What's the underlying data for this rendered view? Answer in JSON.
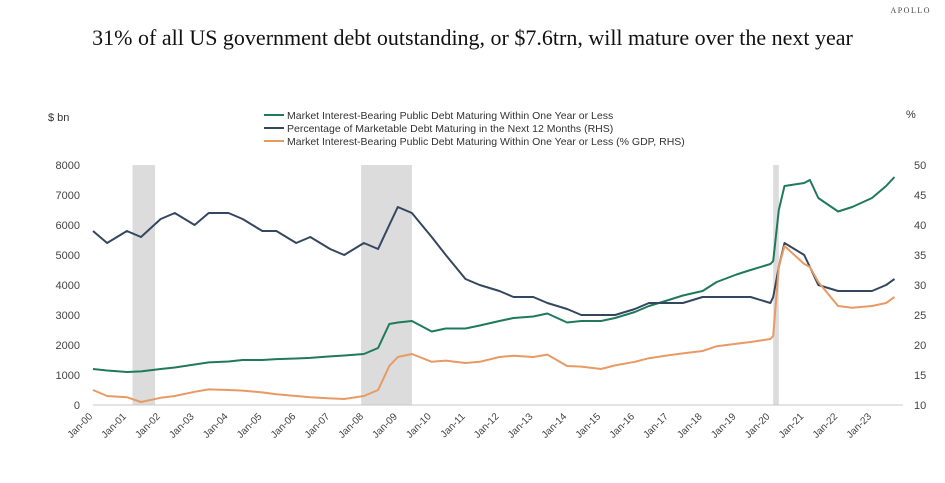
{
  "brand": "APOLLO",
  "chart_data": {
    "type": "line",
    "title": "31% of all US government debt outstanding, or $7.6trn, will mature over the next year",
    "y_left_label": "$ bn",
    "y_right_label": "%",
    "ylim_left": [
      0,
      8000
    ],
    "ylim_right": [
      10,
      50
    ],
    "y_left_ticks": [
      "0",
      "1000",
      "2000",
      "3000",
      "4000",
      "5000",
      "6000",
      "7000",
      "8000"
    ],
    "y_right_ticks": [
      "10",
      "15",
      "20",
      "25",
      "30",
      "35",
      "40",
      "45",
      "50"
    ],
    "x_range": [
      "2000-01",
      "2023-12"
    ],
    "x_ticks": [
      "Jan-00",
      "Jan-01",
      "Jan-02",
      "Jan-03",
      "Jan-04",
      "Jan-05",
      "Jan-06",
      "Jan-07",
      "Jan-08",
      "Jan-09",
      "Jan-10",
      "Jan-11",
      "Jan-12",
      "Jan-13",
      "Jan-14",
      "Jan-15",
      "Jan-16",
      "Jan-17",
      "Jan-18",
      "Jan-19",
      "Jan-20",
      "Jan-21",
      "Jan-22",
      "Jan-23"
    ],
    "recessions": [
      [
        "2001-03",
        "2001-11"
      ],
      [
        "2007-12",
        "2009-06"
      ],
      [
        "2020-02",
        "2020-04"
      ]
    ],
    "legend_position": "top-center",
    "series": [
      {
        "name": "Market Interest-Bearing Public Debt Maturing Within One Year or Less",
        "axis": "left",
        "color": "#1f7a5c",
        "points": [
          [
            "2000-01",
            1200
          ],
          [
            "2000-06",
            1150
          ],
          [
            "2001-01",
            1100
          ],
          [
            "2001-06",
            1120
          ],
          [
            "2002-01",
            1200
          ],
          [
            "2002-06",
            1250
          ],
          [
            "2003-01",
            1350
          ],
          [
            "2003-06",
            1420
          ],
          [
            "2004-01",
            1450
          ],
          [
            "2004-06",
            1500
          ],
          [
            "2005-01",
            1500
          ],
          [
            "2005-06",
            1530
          ],
          [
            "2006-01",
            1550
          ],
          [
            "2006-06",
            1570
          ],
          [
            "2007-01",
            1620
          ],
          [
            "2007-06",
            1650
          ],
          [
            "2008-01",
            1700
          ],
          [
            "2008-06",
            1900
          ],
          [
            "2008-10",
            2700
          ],
          [
            "2009-01",
            2750
          ],
          [
            "2009-06",
            2800
          ],
          [
            "2010-01",
            2450
          ],
          [
            "2010-06",
            2550
          ],
          [
            "2011-01",
            2550
          ],
          [
            "2011-06",
            2650
          ],
          [
            "2012-01",
            2800
          ],
          [
            "2012-06",
            2900
          ],
          [
            "2013-01",
            2950
          ],
          [
            "2013-06",
            3050
          ],
          [
            "2014-01",
            2750
          ],
          [
            "2014-06",
            2800
          ],
          [
            "2015-01",
            2800
          ],
          [
            "2015-06",
            2900
          ],
          [
            "2016-01",
            3100
          ],
          [
            "2016-06",
            3300
          ],
          [
            "2017-01",
            3500
          ],
          [
            "2017-06",
            3650
          ],
          [
            "2018-01",
            3800
          ],
          [
            "2018-06",
            4100
          ],
          [
            "2019-01",
            4350
          ],
          [
            "2019-06",
            4500
          ],
          [
            "2020-01",
            4700
          ],
          [
            "2020-02",
            4800
          ],
          [
            "2020-04",
            6500
          ],
          [
            "2020-06",
            7300
          ],
          [
            "2021-01",
            7400
          ],
          [
            "2021-03",
            7500
          ],
          [
            "2021-06",
            6900
          ],
          [
            "2022-01",
            6450
          ],
          [
            "2022-06",
            6600
          ],
          [
            "2023-01",
            6900
          ],
          [
            "2023-06",
            7300
          ],
          [
            "2023-09",
            7600
          ]
        ]
      },
      {
        "name": "Percentage of Marketable Debt Maturing in the Next 12 Months (RHS)",
        "axis": "right",
        "color": "#34475f",
        "points": [
          [
            "2000-01",
            39
          ],
          [
            "2000-06",
            37
          ],
          [
            "2001-01",
            39
          ],
          [
            "2001-06",
            38
          ],
          [
            "2002-01",
            41
          ],
          [
            "2002-06",
            42
          ],
          [
            "2003-01",
            40
          ],
          [
            "2003-06",
            42
          ],
          [
            "2004-01",
            42
          ],
          [
            "2004-06",
            41
          ],
          [
            "2005-01",
            39
          ],
          [
            "2005-06",
            39
          ],
          [
            "2006-01",
            37
          ],
          [
            "2006-06",
            38
          ],
          [
            "2007-01",
            36
          ],
          [
            "2007-06",
            35
          ],
          [
            "2008-01",
            37
          ],
          [
            "2008-06",
            36
          ],
          [
            "2008-10",
            40
          ],
          [
            "2009-01",
            43
          ],
          [
            "2009-06",
            42
          ],
          [
            "2010-01",
            38
          ],
          [
            "2010-06",
            35
          ],
          [
            "2011-01",
            31
          ],
          [
            "2011-06",
            30
          ],
          [
            "2012-01",
            29
          ],
          [
            "2012-06",
            28
          ],
          [
            "2013-01",
            28
          ],
          [
            "2013-06",
            27
          ],
          [
            "2014-01",
            26
          ],
          [
            "2014-06",
            25
          ],
          [
            "2015-01",
            25
          ],
          [
            "2015-06",
            25
          ],
          [
            "2016-01",
            26
          ],
          [
            "2016-06",
            27
          ],
          [
            "2017-01",
            27
          ],
          [
            "2017-06",
            27
          ],
          [
            "2018-01",
            28
          ],
          [
            "2018-06",
            28
          ],
          [
            "2019-01",
            28
          ],
          [
            "2019-06",
            28
          ],
          [
            "2020-01",
            27
          ],
          [
            "2020-02",
            28
          ],
          [
            "2020-04",
            33
          ],
          [
            "2020-06",
            37
          ],
          [
            "2021-01",
            35
          ],
          [
            "2021-03",
            33
          ],
          [
            "2021-06",
            30
          ],
          [
            "2022-01",
            29
          ],
          [
            "2022-06",
            29
          ],
          [
            "2023-01",
            29
          ],
          [
            "2023-06",
            30
          ],
          [
            "2023-09",
            31
          ]
        ]
      },
      {
        "name": "Market Interest-Bearing Public Debt Maturing Within One Year or Less (% GDP, RHS)",
        "axis": "right",
        "color": "#e89a64",
        "points": [
          [
            "2000-01",
            12.5
          ],
          [
            "2000-06",
            11.5
          ],
          [
            "2001-01",
            11.3
          ],
          [
            "2001-06",
            10.5
          ],
          [
            "2002-01",
            11.2
          ],
          [
            "2002-06",
            11.5
          ],
          [
            "2003-01",
            12.2
          ],
          [
            "2003-06",
            12.6
          ],
          [
            "2004-01",
            12.5
          ],
          [
            "2004-06",
            12.4
          ],
          [
            "2005-01",
            12.1
          ],
          [
            "2005-06",
            11.8
          ],
          [
            "2006-01",
            11.5
          ],
          [
            "2006-06",
            11.3
          ],
          [
            "2007-01",
            11.1
          ],
          [
            "2007-06",
            11.0
          ],
          [
            "2008-01",
            11.5
          ],
          [
            "2008-06",
            12.5
          ],
          [
            "2008-10",
            16.5
          ],
          [
            "2009-01",
            18.0
          ],
          [
            "2009-06",
            18.5
          ],
          [
            "2010-01",
            17.2
          ],
          [
            "2010-06",
            17.4
          ],
          [
            "2011-01",
            17.0
          ],
          [
            "2011-06",
            17.2
          ],
          [
            "2012-01",
            18.0
          ],
          [
            "2012-06",
            18.2
          ],
          [
            "2013-01",
            18.0
          ],
          [
            "2013-06",
            18.4
          ],
          [
            "2014-01",
            16.5
          ],
          [
            "2014-06",
            16.4
          ],
          [
            "2015-01",
            16.0
          ],
          [
            "2015-06",
            16.6
          ],
          [
            "2016-01",
            17.2
          ],
          [
            "2016-06",
            17.8
          ],
          [
            "2017-01",
            18.3
          ],
          [
            "2017-06",
            18.6
          ],
          [
            "2018-01",
            19.0
          ],
          [
            "2018-06",
            19.8
          ],
          [
            "2019-01",
            20.2
          ],
          [
            "2019-06",
            20.5
          ],
          [
            "2020-01",
            21.0
          ],
          [
            "2020-02",
            21.5
          ],
          [
            "2020-04",
            33.0
          ],
          [
            "2020-06",
            36.5
          ],
          [
            "2021-01",
            33.5
          ],
          [
            "2021-03",
            33.0
          ],
          [
            "2021-06",
            30.5
          ],
          [
            "2022-01",
            26.5
          ],
          [
            "2022-06",
            26.2
          ],
          [
            "2023-01",
            26.5
          ],
          [
            "2023-06",
            27.0
          ],
          [
            "2023-09",
            28.0
          ]
        ]
      }
    ]
  }
}
